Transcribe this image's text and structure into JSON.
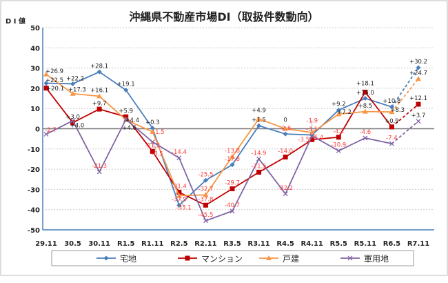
{
  "chart_data": {
    "type": "line",
    "title": "沖縄県不動産市場DI（取扱件数動向）",
    "ylabel": "D I 値",
    "ylim": [
      -50,
      50
    ],
    "yticks": [
      50,
      40,
      30,
      20,
      10,
      0,
      -10,
      -20,
      -30,
      -40,
      -50
    ],
    "grid": true,
    "legend_position": "bottom",
    "forecast_last_segment_dashed": true,
    "categories": [
      "29.11",
      "30.5",
      "30.11",
      "R1.5",
      "R1.11",
      "R2.5",
      "R2.11",
      "R3.5",
      "R3.11",
      "R4.5",
      "R4.11",
      "R5.5",
      "R5.11",
      "R6.5",
      "R7.11"
    ],
    "series": [
      {
        "name": "宅地",
        "color": "#4a7ebb",
        "marker": "diamond",
        "values": [
          22.5,
          22.2,
          28.1,
          19.1,
          0.3,
          -37.9,
          -25.5,
          -17.8,
          1.5,
          -2.6,
          -3.1,
          9.2,
          15.0,
          10.8,
          30.2
        ]
      },
      {
        "name": "マンション",
        "color": "#c00000",
        "marker": "square",
        "values": [
          20.1,
          3.0,
          9.7,
          5.9,
          -11.2,
          -31.4,
          -37.8,
          -29.7,
          -21.5,
          -14.0,
          -5.4,
          -4.2,
          18.1,
          0.9,
          12.1
        ]
      },
      {
        "name": "戸建",
        "color": "#f79646",
        "marker": "triangle",
        "values": [
          26.9,
          17.3,
          16.1,
          4.4,
          -1.5,
          -33.1,
          -32.7,
          -13.8,
          4.9,
          0,
          -1.9,
          7.2,
          8.5,
          8.3,
          24.7
        ]
      },
      {
        "name": "軍用地",
        "color": "#8064a2",
        "marker": "x",
        "values": [
          -2.7,
          4.0,
          -21.3,
          4.6,
          -6.5,
          -14.4,
          -45.5,
          -40.7,
          -14.9,
          -32.2,
          -3.5,
          -10.9,
          -4.6,
          -7.4,
          3.7
        ]
      }
    ]
  }
}
